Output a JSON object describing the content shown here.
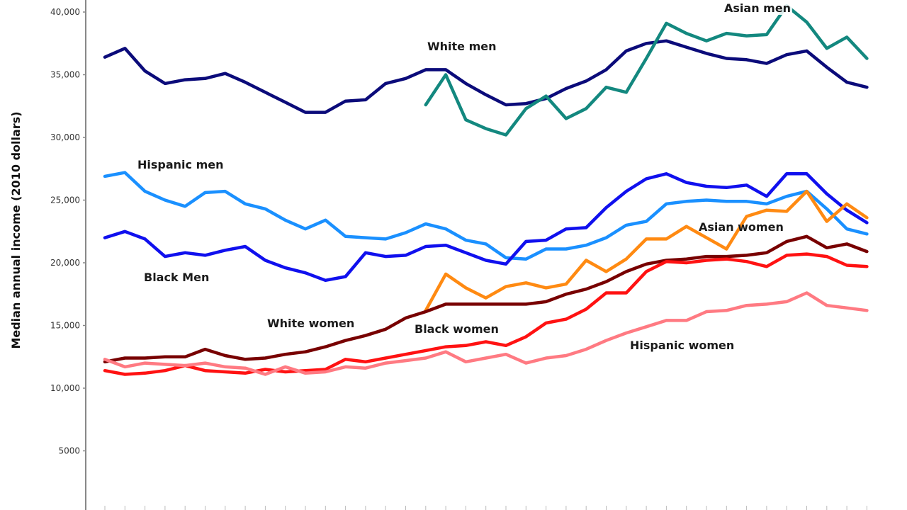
{
  "chart_data": {
    "type": "line",
    "title": "",
    "xlabel": "",
    "ylabel": "Median annual income (2010 dollars)",
    "ylim": [
      0,
      41000
    ],
    "yticks": [
      {
        "value": 40000,
        "label": "40,000"
      },
      {
        "value": 35000,
        "label": "35,000"
      },
      {
        "value": 30000,
        "label": "30,000"
      },
      {
        "value": 25000,
        "label": "25,000"
      },
      {
        "value": 20000,
        "label": "20,000"
      },
      {
        "value": 15000,
        "label": "15,000"
      },
      {
        "value": 10000,
        "label": "10,000"
      },
      {
        "value": 5000,
        "label": "5000"
      }
    ],
    "grid": false,
    "legend": "inline labels",
    "series": [
      {
        "name": "White men",
        "color": "#0b0b7a",
        "values": [
          36400,
          37100,
          35300,
          34300,
          34600,
          34700,
          35100,
          34400,
          33600,
          32800,
          32000,
          32000,
          32900,
          33000,
          34300,
          34700,
          35400,
          35400,
          34300,
          33400,
          32600,
          32700,
          33100,
          33900,
          34500,
          35400,
          36900,
          37500,
          37700,
          37200,
          36700,
          36300,
          36200,
          35900,
          36600,
          36900,
          35600,
          34400,
          34000
        ]
      },
      {
        "name": "Asian men",
        "color": "#13887f",
        "values": [
          null,
          null,
          null,
          null,
          null,
          null,
          null,
          null,
          null,
          null,
          null,
          null,
          null,
          null,
          null,
          null,
          32600,
          35000,
          31400,
          30700,
          30200,
          32300,
          33300,
          31500,
          32300,
          34000,
          33600,
          36300,
          39100,
          38300,
          37700,
          38300,
          38100,
          38200,
          40500,
          39200,
          37100,
          38000,
          36300
        ]
      },
      {
        "name": "Hispanic men",
        "color": "#1a90ff",
        "values": [
          26900,
          27200,
          25700,
          25000,
          24500,
          25600,
          25700,
          24700,
          24300,
          23400,
          22700,
          23400,
          22100,
          22000,
          21900,
          22400,
          23100,
          22700,
          21800,
          21500,
          20400,
          20300,
          21100,
          21100,
          21400,
          22000,
          23000,
          23300,
          24700,
          24900,
          25000,
          24900,
          24900,
          24700,
          25300,
          25700,
          24300,
          22700,
          22300
        ]
      },
      {
        "name": "Black Men",
        "color": "#1010ee",
        "values": [
          22000,
          22500,
          21900,
          20500,
          20800,
          20600,
          21000,
          21300,
          20200,
          19600,
          19200,
          18600,
          18900,
          20800,
          20500,
          20600,
          21300,
          21400,
          20800,
          20200,
          19900,
          21700,
          21800,
          22700,
          22800,
          24400,
          25700,
          26700,
          27100,
          26400,
          26100,
          26000,
          26200,
          25300,
          27100,
          27100,
          25500,
          24200,
          23200
        ]
      },
      {
        "name": "Asian women",
        "color": "#ff8a12",
        "values": [
          null,
          null,
          null,
          null,
          null,
          null,
          null,
          null,
          null,
          null,
          null,
          null,
          null,
          null,
          null,
          null,
          16200,
          19100,
          18000,
          17200,
          18100,
          18400,
          18000,
          18300,
          20200,
          19300,
          20300,
          21900,
          21900,
          22900,
          22000,
          21100,
          23700,
          24200,
          24100,
          25700,
          23300,
          24700,
          23600
        ]
      },
      {
        "name": "White women",
        "color": "#780000",
        "values": [
          12100,
          12400,
          12400,
          12500,
          12500,
          13100,
          12600,
          12300,
          12400,
          12700,
          12900,
          13300,
          13800,
          14200,
          14700,
          15600,
          16100,
          16700,
          16700,
          16700,
          16700,
          16700,
          16900,
          17500,
          17900,
          18500,
          19300,
          19900,
          20200,
          20300,
          20500,
          20500,
          20600,
          20800,
          21700,
          22100,
          21200,
          21500,
          20900
        ]
      },
      {
        "name": "Black women",
        "color": "#ff1212",
        "values": [
          11400,
          11100,
          11200,
          11400,
          11800,
          11400,
          11300,
          11200,
          11500,
          11300,
          11400,
          11500,
          12300,
          12100,
          12400,
          12700,
          13000,
          13300,
          13400,
          13700,
          13400,
          14100,
          15200,
          15500,
          16300,
          17600,
          17600,
          19300,
          20100,
          20000,
          20200,
          20300,
          20100,
          19700,
          20600,
          20700,
          20500,
          19800,
          19700
        ]
      },
      {
        "name": "Hispanic women",
        "color": "#ff7a82",
        "values": [
          12300,
          11700,
          12000,
          11900,
          11800,
          12000,
          11700,
          11600,
          11100,
          11700,
          11200,
          11300,
          11700,
          11600,
          12000,
          12200,
          12400,
          12900,
          12100,
          12400,
          12700,
          12000,
          12400,
          12600,
          13100,
          13800,
          14400,
          14900,
          15400,
          15400,
          16100,
          16200,
          16600,
          16700,
          16900,
          17600,
          16600,
          16400,
          16200
        ]
      }
    ]
  },
  "labels": {
    "white_men": "White men",
    "asian_men": "Asian men",
    "hispanic_men": "Hispanic men",
    "black_men": "Black Men",
    "asian_women": "Asian women",
    "white_women": "White women",
    "black_women": "Black women",
    "hispanic_women": "Hispanic women"
  }
}
